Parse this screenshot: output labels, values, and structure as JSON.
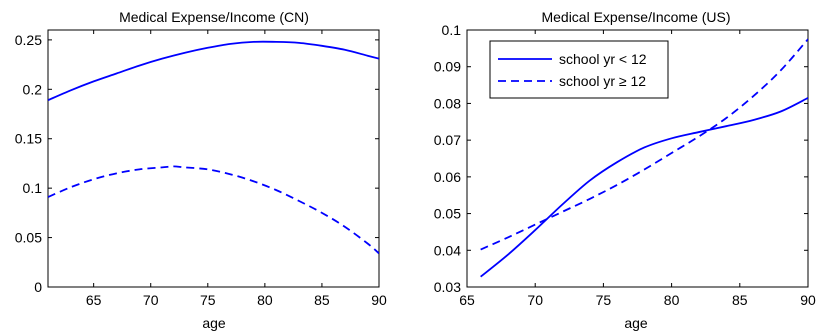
{
  "chart_data": [
    {
      "type": "line",
      "title": "Medical Expense/Income (CN)",
      "xlabel": "age",
      "ylabel": "",
      "xlim": [
        61,
        90
      ],
      "ylim": [
        0,
        0.26
      ],
      "xticks": [
        65,
        70,
        75,
        80,
        85,
        90
      ],
      "xtick_labels": [
        "65",
        "70",
        "75",
        "80",
        "85",
        "90"
      ],
      "yticks": [
        0,
        0.05,
        0.1,
        0.15,
        0.2,
        0.25
      ],
      "ytick_labels": [
        "0",
        "0.05",
        "0.1",
        "0.15",
        "0.2",
        "0.25"
      ],
      "grid": false,
      "legend": null,
      "series": [
        {
          "style": "solid",
          "color": "#0000ff",
          "x": [
            61,
            63,
            65,
            67,
            69,
            71,
            73,
            75,
            77,
            79,
            81,
            83,
            85,
            87,
            89,
            90
          ],
          "values": [
            0.189,
            0.199,
            0.208,
            0.216,
            0.224,
            0.231,
            0.237,
            0.242,
            0.246,
            0.248,
            0.248,
            0.247,
            0.244,
            0.24,
            0.234,
            0.231
          ]
        },
        {
          "style": "dashed",
          "color": "#0000ff",
          "x": [
            61,
            63,
            65,
            67,
            69,
            71,
            72,
            73,
            75,
            77,
            79,
            81,
            83,
            85,
            87,
            89,
            90
          ],
          "values": [
            0.091,
            0.101,
            0.109,
            0.115,
            0.119,
            0.121,
            0.122,
            0.121,
            0.119,
            0.114,
            0.107,
            0.098,
            0.087,
            0.075,
            0.061,
            0.044,
            0.034
          ]
        }
      ]
    },
    {
      "type": "line",
      "title": "Medical Expense/Income (US)",
      "xlabel": "age",
      "ylabel": "",
      "xlim": [
        65,
        90
      ],
      "ylim": [
        0.03,
        0.1
      ],
      "xticks": [
        65,
        70,
        75,
        80,
        85,
        90
      ],
      "xtick_labels": [
        "65",
        "70",
        "75",
        "80",
        "85",
        "90"
      ],
      "yticks": [
        0.03,
        0.04,
        0.05,
        0.06,
        0.07,
        0.08,
        0.09,
        0.1
      ],
      "ytick_labels": [
        "0.03",
        "0.04",
        "0.05",
        "0.06",
        "0.07",
        "0.08",
        "0.09",
        "0.1"
      ],
      "grid": false,
      "legend": "top-left",
      "series": [
        {
          "name": "school yr < 12",
          "style": "solid",
          "color": "#0000ff",
          "x": [
            66,
            68,
            70,
            72,
            74,
            76,
            78,
            80,
            82,
            84,
            86,
            88,
            90
          ],
          "values": [
            0.0328,
            0.0388,
            0.0455,
            0.0525,
            0.059,
            0.064,
            0.068,
            0.0705,
            0.0722,
            0.0738,
            0.0755,
            0.0778,
            0.0815
          ]
        },
        {
          "name": "school yr ≥ 12",
          "style": "dashed",
          "color": "#0000ff",
          "x": [
            66,
            68,
            70,
            72,
            74,
            76,
            78,
            80,
            82,
            84,
            86,
            88,
            90
          ],
          "values": [
            0.0402,
            0.0435,
            0.047,
            0.0505,
            0.054,
            0.0578,
            0.062,
            0.0665,
            0.071,
            0.076,
            0.082,
            0.089,
            0.0975
          ]
        }
      ]
    }
  ]
}
